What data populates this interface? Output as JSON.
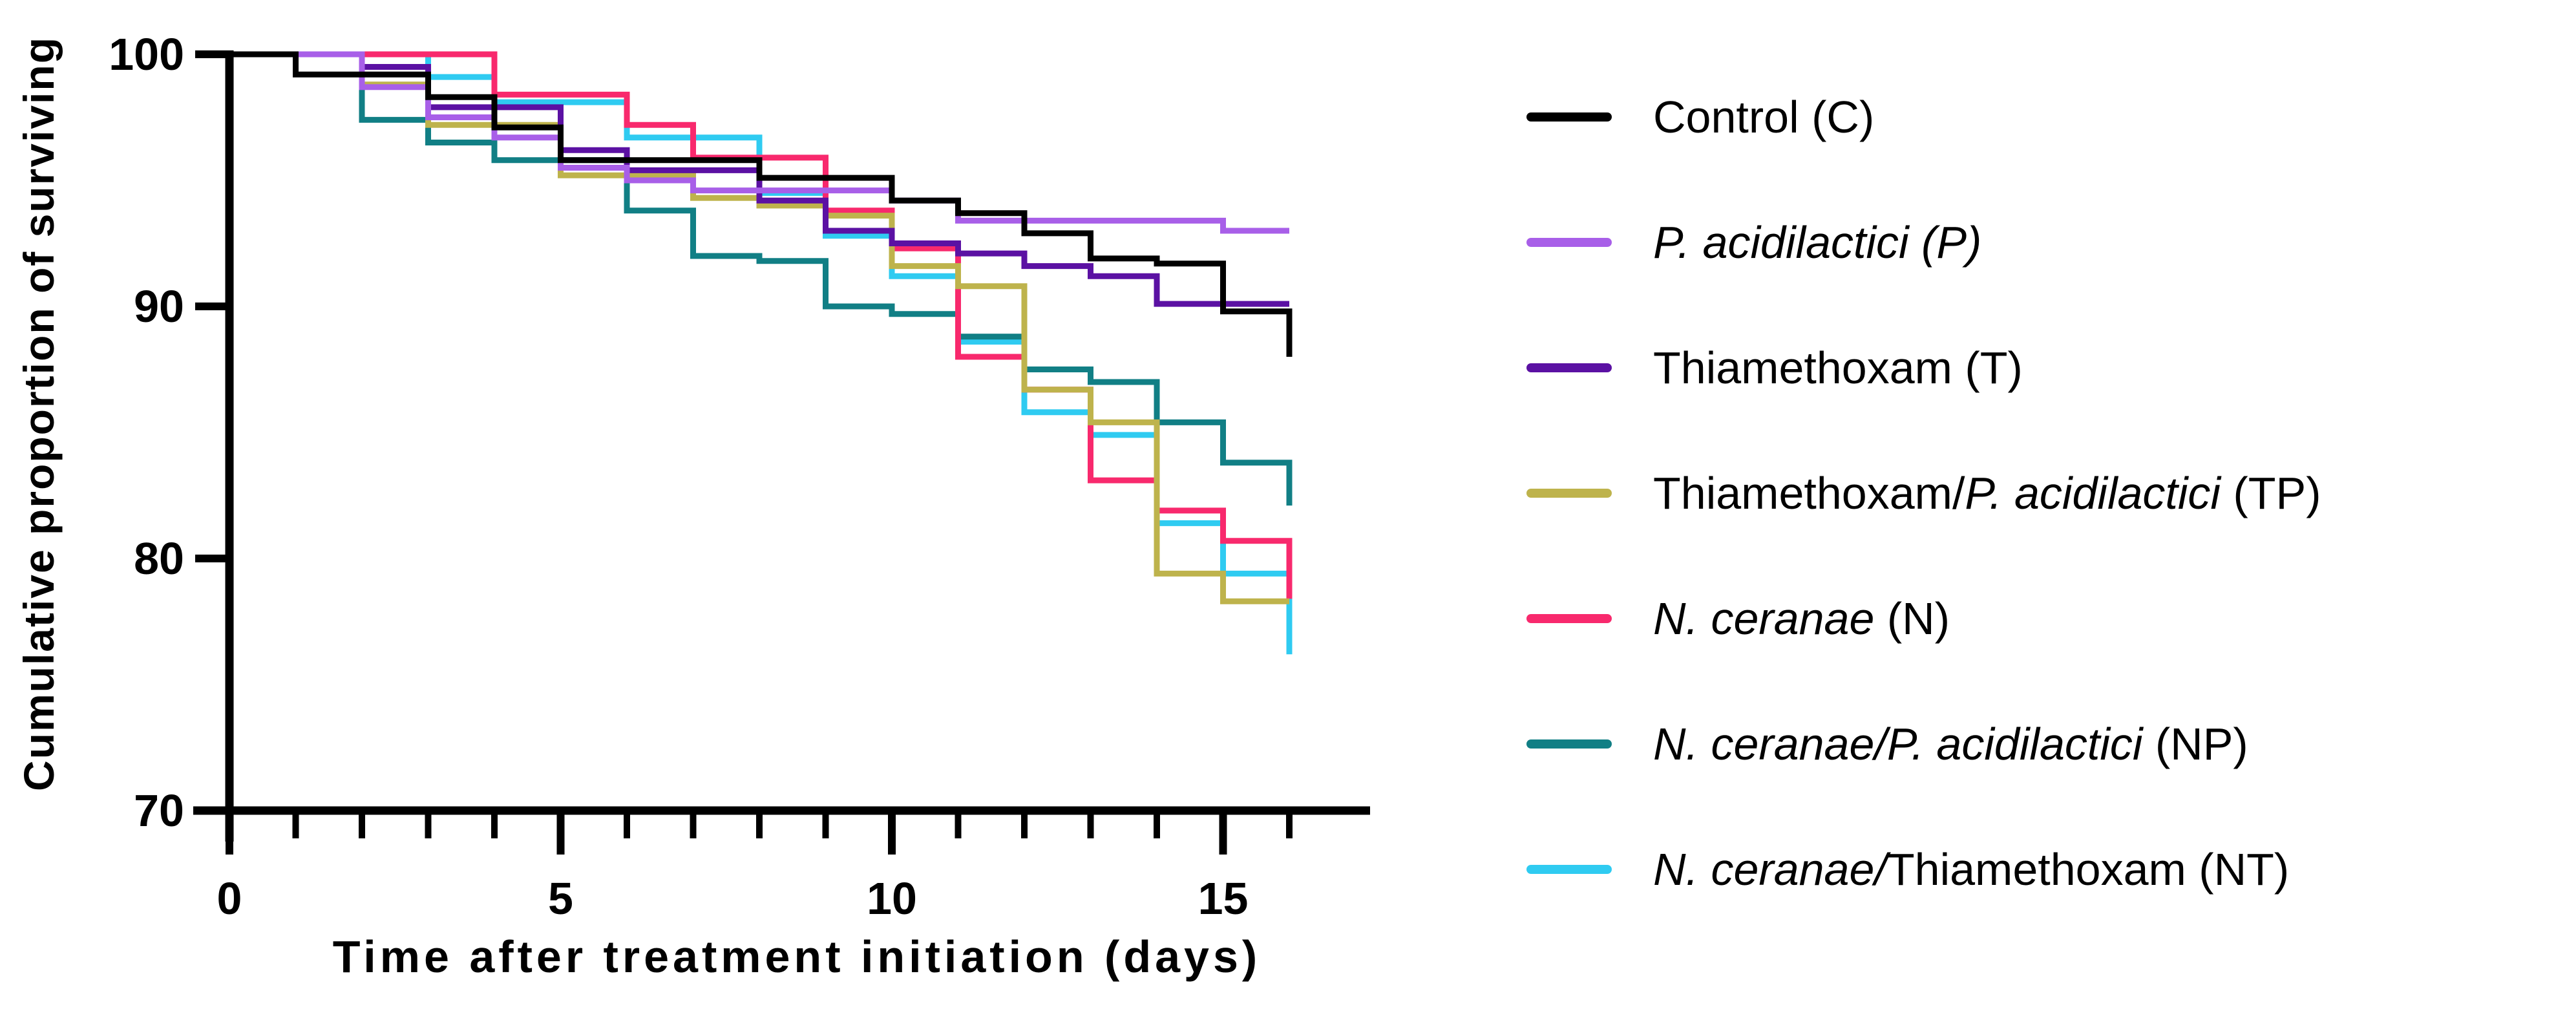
{
  "chart_data": {
    "type": "line",
    "subtype": "kaplan-meier-step-survival",
    "title": "",
    "xlabel": "Time after treatment initiation (days)",
    "ylabel": "Cumulative proportion of surviving",
    "xlim": [
      0,
      17.2
    ],
    "ylim": [
      70,
      100
    ],
    "x_major_ticks": [
      0,
      5,
      10,
      15
    ],
    "x_minor_ticks": [
      1,
      2,
      3,
      4,
      6,
      7,
      8,
      9,
      11,
      12,
      13,
      14,
      16
    ],
    "y_ticks": [
      100,
      90,
      80,
      70
    ],
    "grid": false,
    "legend_position": "right",
    "axis_color": "#000000",
    "start_day": 0,
    "start_value": 100,
    "end_day": 16,
    "series": [
      {
        "id": "C",
        "label_segments": [
          {
            "t": "Control (C)",
            "i": false
          }
        ],
        "color": "#000000",
        "drops": [
          [
            1,
            99.2
          ],
          [
            3,
            98.3
          ],
          [
            4,
            97.1
          ],
          [
            5,
            95.8
          ],
          [
            8,
            95.1
          ],
          [
            10,
            94.2
          ],
          [
            11,
            93.7
          ],
          [
            12,
            92.9
          ],
          [
            13,
            91.9
          ],
          [
            14,
            91.7
          ],
          [
            15,
            89.8
          ],
          [
            16,
            88.0
          ]
        ]
      },
      {
        "id": "P",
        "label_segments": [
          {
            "t": "P. acidilactici (P)",
            "i": true
          }
        ],
        "color": "#A85FE8",
        "drops": [
          [
            2,
            98.7
          ],
          [
            3,
            97.5
          ],
          [
            4,
            96.7
          ],
          [
            5,
            95.5
          ],
          [
            6,
            95.0
          ],
          [
            7,
            94.6
          ],
          [
            10,
            94.2
          ],
          [
            11,
            93.4
          ],
          [
            15,
            93.0
          ]
        ]
      },
      {
        "id": "T",
        "label_segments": [
          {
            "t": "Thiamethoxam (T)",
            "i": false
          }
        ],
        "color": "#5B11A3",
        "drops": [
          [
            2,
            99.5
          ],
          [
            3,
            97.9
          ],
          [
            5,
            96.2
          ],
          [
            6,
            95.4
          ],
          [
            8,
            94.2
          ],
          [
            9,
            93.0
          ],
          [
            10,
            92.5
          ],
          [
            11,
            92.1
          ],
          [
            12,
            91.6
          ],
          [
            13,
            91.2
          ],
          [
            14,
            90.1
          ]
        ]
      },
      {
        "id": "TP",
        "label_segments": [
          {
            "t": "Thiamethoxam/",
            "i": false
          },
          {
            "t": "P. acidilactici",
            "i": true
          },
          {
            "t": " (TP)",
            "i": false
          }
        ],
        "color": "#BEB34C",
        "drops": [
          [
            2,
            98.8
          ],
          [
            3,
            97.2
          ],
          [
            5,
            95.2
          ],
          [
            7,
            94.3
          ],
          [
            8,
            94.0
          ],
          [
            9,
            93.6
          ],
          [
            10,
            91.6
          ],
          [
            11,
            90.8
          ],
          [
            12,
            86.7
          ],
          [
            13,
            85.4
          ],
          [
            14,
            79.4
          ],
          [
            15,
            78.3
          ]
        ]
      },
      {
        "id": "N",
        "label_segments": [
          {
            "t": "N. ceranae",
            "i": true
          },
          {
            "t": " (N)",
            "i": false
          }
        ],
        "color": "#F8296D",
        "drops": [
          [
            4,
            98.4
          ],
          [
            6,
            97.2
          ],
          [
            7,
            95.9
          ],
          [
            9,
            93.8
          ],
          [
            10,
            92.3
          ],
          [
            11,
            88.0
          ],
          [
            12,
            86.7
          ],
          [
            13,
            83.1
          ],
          [
            14,
            81.9
          ],
          [
            15,
            80.7
          ],
          [
            16,
            78.4
          ]
        ]
      },
      {
        "id": "NP",
        "label_segments": [
          {
            "t": "N. ceranae/P. acidilactici",
            "i": true
          },
          {
            "t": " (NP)",
            "i": false
          }
        ],
        "color": "#117F85",
        "drops": [
          [
            2,
            97.4
          ],
          [
            3,
            96.5
          ],
          [
            4,
            95.8
          ],
          [
            6,
            93.8
          ],
          [
            7,
            92.0
          ],
          [
            8,
            91.8
          ],
          [
            9,
            90.0
          ],
          [
            10,
            89.7
          ],
          [
            11,
            88.8
          ],
          [
            12,
            87.5
          ],
          [
            13,
            87.0
          ],
          [
            14,
            85.4
          ],
          [
            15,
            83.8
          ],
          [
            16,
            82.1
          ]
        ]
      },
      {
        "id": "NT",
        "label_segments": [
          {
            "t": "N. ceranae/",
            "i": true
          },
          {
            "t": "Thiamethoxam (NT)",
            "i": false
          }
        ],
        "color": "#2FCBF1",
        "drops": [
          [
            3,
            99.1
          ],
          [
            4,
            98.1
          ],
          [
            6,
            96.7
          ],
          [
            8,
            94.5
          ],
          [
            9,
            92.8
          ],
          [
            10,
            91.2
          ],
          [
            11,
            88.6
          ],
          [
            12,
            85.8
          ],
          [
            13,
            84.9
          ],
          [
            14,
            81.4
          ],
          [
            15,
            79.4
          ],
          [
            16,
            76.2
          ]
        ]
      }
    ]
  }
}
